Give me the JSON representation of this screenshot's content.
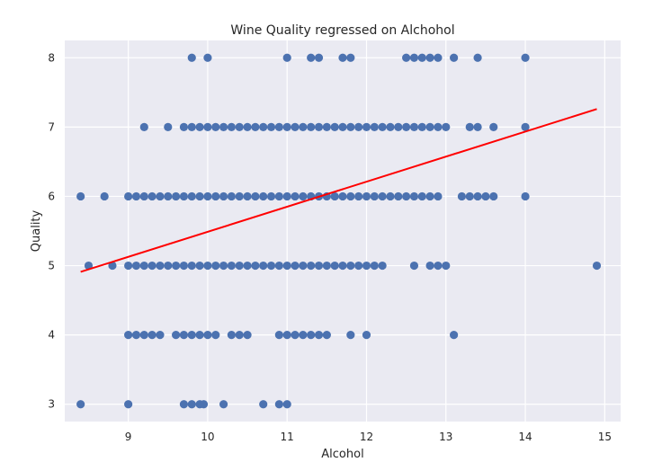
{
  "chart_data": {
    "type": "scatter",
    "title": "Wine Quality regressed on Alchohol",
    "xlabel": "Alcohol",
    "ylabel": "Quality",
    "xlim": [
      8.2,
      15.2
    ],
    "ylim": [
      2.75,
      8.25
    ],
    "xticks": [
      9,
      10,
      11,
      12,
      13,
      14,
      15
    ],
    "yticks": [
      3,
      4,
      5,
      6,
      7,
      8
    ],
    "grid": true,
    "background": "#eaeaf2",
    "grid_color": "#ffffff",
    "point_color": "#4c72b0",
    "line_color": "#ff0000",
    "points": [
      [
        9.8,
        8
      ],
      [
        10.0,
        8
      ],
      [
        11.0,
        8
      ],
      [
        11.3,
        8
      ],
      [
        11.4,
        8
      ],
      [
        11.7,
        8
      ],
      [
        11.8,
        8
      ],
      [
        12.5,
        8
      ],
      [
        12.6,
        8
      ],
      [
        12.7,
        8
      ],
      [
        12.8,
        8
      ],
      [
        12.9,
        8
      ],
      [
        13.1,
        8
      ],
      [
        13.4,
        8
      ],
      [
        14.0,
        8
      ],
      [
        9.2,
        7
      ],
      [
        9.5,
        7
      ],
      [
        9.7,
        7
      ],
      [
        9.8,
        7
      ],
      [
        9.9,
        7
      ],
      [
        10.0,
        7
      ],
      [
        10.1,
        7
      ],
      [
        10.2,
        7
      ],
      [
        10.3,
        7
      ],
      [
        10.4,
        7
      ],
      [
        10.5,
        7
      ],
      [
        10.6,
        7
      ],
      [
        10.7,
        7
      ],
      [
        10.8,
        7
      ],
      [
        10.9,
        7
      ],
      [
        11.0,
        7
      ],
      [
        11.1,
        7
      ],
      [
        11.2,
        7
      ],
      [
        11.3,
        7
      ],
      [
        11.4,
        7
      ],
      [
        11.5,
        7
      ],
      [
        11.6,
        7
      ],
      [
        11.7,
        7
      ],
      [
        11.8,
        7
      ],
      [
        11.9,
        7
      ],
      [
        12.0,
        7
      ],
      [
        12.1,
        7
      ],
      [
        12.2,
        7
      ],
      [
        12.3,
        7
      ],
      [
        12.4,
        7
      ],
      [
        12.5,
        7
      ],
      [
        12.6,
        7
      ],
      [
        12.7,
        7
      ],
      [
        12.8,
        7
      ],
      [
        12.9,
        7
      ],
      [
        13.0,
        7
      ],
      [
        13.3,
        7
      ],
      [
        13.4,
        7
      ],
      [
        13.6,
        7
      ],
      [
        14.0,
        7
      ],
      [
        8.4,
        6
      ],
      [
        8.7,
        6
      ],
      [
        9.0,
        6
      ],
      [
        9.1,
        6
      ],
      [
        9.2,
        6
      ],
      [
        9.3,
        6
      ],
      [
        9.4,
        6
      ],
      [
        9.5,
        6
      ],
      [
        9.6,
        6
      ],
      [
        9.7,
        6
      ],
      [
        9.8,
        6
      ],
      [
        9.9,
        6
      ],
      [
        10.0,
        6
      ],
      [
        10.1,
        6
      ],
      [
        10.2,
        6
      ],
      [
        10.3,
        6
      ],
      [
        10.4,
        6
      ],
      [
        10.5,
        6
      ],
      [
        10.6,
        6
      ],
      [
        10.7,
        6
      ],
      [
        10.8,
        6
      ],
      [
        10.9,
        6
      ],
      [
        11.0,
        6
      ],
      [
        11.1,
        6
      ],
      [
        11.2,
        6
      ],
      [
        11.3,
        6
      ],
      [
        11.4,
        6
      ],
      [
        11.5,
        6
      ],
      [
        11.6,
        6
      ],
      [
        11.7,
        6
      ],
      [
        11.8,
        6
      ],
      [
        11.9,
        6
      ],
      [
        12.0,
        6
      ],
      [
        12.1,
        6
      ],
      [
        12.2,
        6
      ],
      [
        12.3,
        6
      ],
      [
        12.4,
        6
      ],
      [
        12.5,
        6
      ],
      [
        12.6,
        6
      ],
      [
        12.7,
        6
      ],
      [
        12.8,
        6
      ],
      [
        12.9,
        6
      ],
      [
        13.2,
        6
      ],
      [
        13.3,
        6
      ],
      [
        13.4,
        6
      ],
      [
        13.5,
        6
      ],
      [
        13.6,
        6
      ],
      [
        14.0,
        6
      ],
      [
        8.5,
        5
      ],
      [
        8.8,
        5
      ],
      [
        9.0,
        5
      ],
      [
        9.1,
        5
      ],
      [
        9.2,
        5
      ],
      [
        9.3,
        5
      ],
      [
        9.4,
        5
      ],
      [
        9.5,
        5
      ],
      [
        9.6,
        5
      ],
      [
        9.7,
        5
      ],
      [
        9.8,
        5
      ],
      [
        9.9,
        5
      ],
      [
        10.0,
        5
      ],
      [
        10.1,
        5
      ],
      [
        10.2,
        5
      ],
      [
        10.3,
        5
      ],
      [
        10.4,
        5
      ],
      [
        10.5,
        5
      ],
      [
        10.6,
        5
      ],
      [
        10.7,
        5
      ],
      [
        10.8,
        5
      ],
      [
        10.9,
        5
      ],
      [
        11.0,
        5
      ],
      [
        11.1,
        5
      ],
      [
        11.2,
        5
      ],
      [
        11.3,
        5
      ],
      [
        11.4,
        5
      ],
      [
        11.5,
        5
      ],
      [
        11.6,
        5
      ],
      [
        11.7,
        5
      ],
      [
        11.8,
        5
      ],
      [
        11.9,
        5
      ],
      [
        12.0,
        5
      ],
      [
        12.1,
        5
      ],
      [
        12.2,
        5
      ],
      [
        12.6,
        5
      ],
      [
        12.8,
        5
      ],
      [
        12.9,
        5
      ],
      [
        13.0,
        5
      ],
      [
        14.9,
        5
      ],
      [
        9.0,
        4
      ],
      [
        9.1,
        4
      ],
      [
        9.2,
        4
      ],
      [
        9.3,
        4
      ],
      [
        9.4,
        4
      ],
      [
        9.6,
        4
      ],
      [
        9.7,
        4
      ],
      [
        9.8,
        4
      ],
      [
        9.9,
        4
      ],
      [
        10.0,
        4
      ],
      [
        10.1,
        4
      ],
      [
        10.3,
        4
      ],
      [
        10.4,
        4
      ],
      [
        10.5,
        4
      ],
      [
        10.9,
        4
      ],
      [
        11.0,
        4
      ],
      [
        11.1,
        4
      ],
      [
        11.2,
        4
      ],
      [
        11.3,
        4
      ],
      [
        11.4,
        4
      ],
      [
        11.5,
        4
      ],
      [
        11.8,
        4
      ],
      [
        12.0,
        4
      ],
      [
        13.1,
        4
      ],
      [
        8.4,
        3
      ],
      [
        9.0,
        3
      ],
      [
        9.7,
        3
      ],
      [
        9.8,
        3
      ],
      [
        9.9,
        3
      ],
      [
        9.95,
        3
      ],
      [
        10.2,
        3
      ],
      [
        10.7,
        3
      ],
      [
        10.9,
        3
      ],
      [
        11.0,
        3
      ]
    ],
    "regression_line": {
      "x": [
        8.4,
        14.9
      ],
      "y": [
        4.91,
        7.26
      ]
    }
  }
}
